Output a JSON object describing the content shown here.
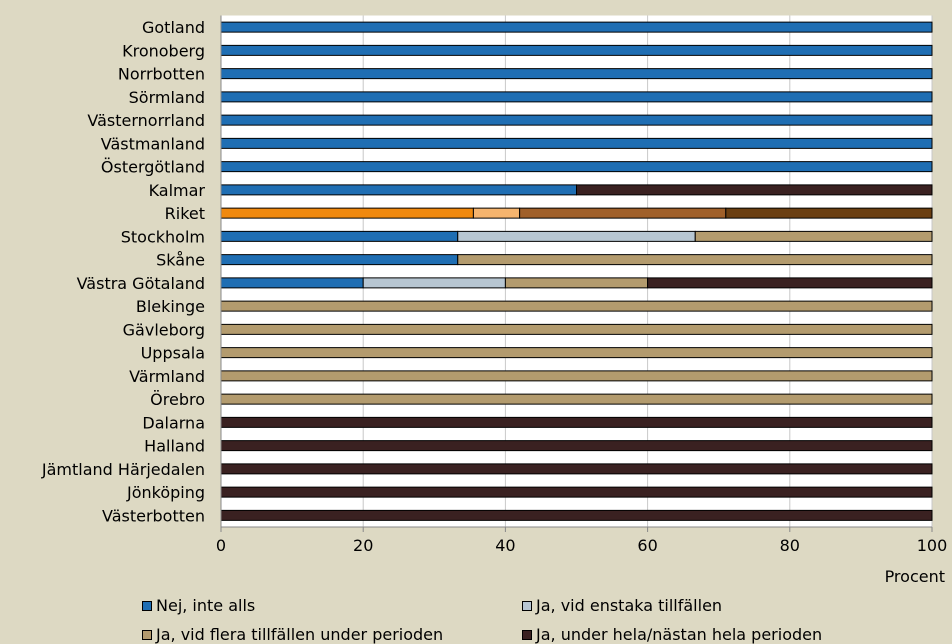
{
  "chart_data": {
    "type": "bar",
    "orientation": "horizontal",
    "stacked": true,
    "categories": [
      "Gotland",
      "Kronoberg",
      "Norrbotten",
      "Sörmland",
      "Västernorrland",
      "Västmanland",
      "Östergötland",
      "Kalmar",
      "Riket",
      "Stockholm",
      "Skåne",
      "Västra Götaland",
      "Blekinge",
      "Gävleborg",
      "Uppsala",
      "Värmland",
      "Örebro",
      "Dalarna",
      "Halland",
      "Jämtland Härjedalen",
      "Jönköping",
      "Västerbotten"
    ],
    "series": [
      {
        "name": "Nej, inte alls",
        "color": "#1F6EB3",
        "values": [
          100,
          100,
          100,
          100,
          100,
          100,
          100,
          50,
          35.5,
          33.3,
          33.3,
          20,
          0,
          0,
          0,
          0,
          0,
          0,
          0,
          0,
          0,
          0
        ]
      },
      {
        "name": "Ja, vid enstaka tillfällen",
        "color": "#B7C6D2",
        "values": [
          0,
          0,
          0,
          0,
          0,
          0,
          0,
          0,
          6.5,
          33.4,
          0,
          20,
          0,
          0,
          0,
          0,
          0,
          0,
          0,
          0,
          0,
          0
        ]
      },
      {
        "name": "Ja, vid flera tillfällen under perioden",
        "color": "#B39B6E",
        "values": [
          0,
          0,
          0,
          0,
          0,
          0,
          0,
          0,
          29,
          33.3,
          66.7,
          20,
          100,
          100,
          100,
          100,
          100,
          0,
          0,
          0,
          0,
          0
        ]
      },
      {
        "name": "Ja, under hela/nästan hela perioden",
        "color": "#3A2121",
        "values": [
          0,
          0,
          0,
          0,
          0,
          0,
          0,
          50,
          29,
          0,
          0,
          40,
          0,
          0,
          0,
          0,
          0,
          100,
          100,
          100,
          100,
          100
        ]
      }
    ],
    "highlight": {
      "category": "Riket",
      "colors": [
        "#F0890F",
        "#F5B46E",
        "#A0602A",
        "#6B3F12"
      ]
    },
    "xlim": [
      0,
      100
    ],
    "xticks": [
      0,
      20,
      40,
      60,
      80,
      100
    ],
    "xlabel": "Procent",
    "ylabel": "",
    "title": "",
    "grid": "vertical",
    "legend_position": "bottom"
  }
}
